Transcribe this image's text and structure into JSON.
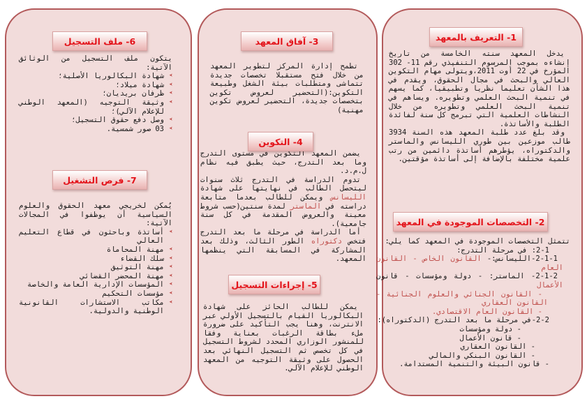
{
  "colors": {
    "panel_fill": "#f2dcdb",
    "panel_border": "#b35a5b",
    "title_text": "#e3141b",
    "highlight": "#c0504d"
  },
  "right_panel": {
    "s1": {
      "title": "1- التعريف بالمعهد",
      "paragraphs": [
        [
          {
            "t": "يدخل المعهد سنته الخامسة من تاريخ إنشاءه بموجب المرسوم التنفيذي رقم 11-  302 المؤرخ في 22 أوت 2011،ويتولى مهام التكوين العالي والبحث في مجال الحقوق، ويقدم في هذا الشأن تعليما نظريا وتطبيقيا، كما يسهم في تنمية البحث العلمي وتطويره. ويساهم في تنمية البحث العلمي وتطويره من خلال النشاطات العلمية التي تبرمج كل سنة لفائدة الطلبة والأساتذة."
          }
        ],
        [
          {
            "t": "وقد بلغ عدد طلبة المعهد هذه السنة 3934 طالب موزعين بين طوري الليسانس والماستر والدكتوراه، يؤطرهم أساتذة دائمين من رتب علمية مختلفة بالإضافة إلى أساتذة مؤقتين."
          }
        ]
      ]
    },
    "s2": {
      "title": "2- التخصصات الموجودة في المعهد",
      "paragraphs": [
        [
          {
            "t": "تتمثل التخصصات الموجودة في المعهد كما يلي:"
          }
        ],
        [
          {
            "t": "2-1: في مرحلة التدرج:"
          }
        ],
        [
          {
            "t": "2-1-1-الليسانس:- "
          },
          {
            "t": "القانون الخاص - القانون العام",
            "red": true
          }
        ],
        [
          {
            "t": "2-1-2- الماستر: - دولة ومؤسسات - قانون "
          },
          {
            "t": "الأعمال",
            "red": true
          }
        ],
        [
          {
            "t": "- القانون الجنائي والعلوم الجنائية - القانون العقاري",
            "red": true
          }
        ],
        [
          {
            "t": "- القانون العام الاقتصادي.",
            "red": true
          }
        ],
        [
          {
            "t": "2-2-في مرحلة ما بعد التدرج (الدكتوراه):"
          }
        ],
        [
          {
            "t": "- دولة ومؤسسات"
          }
        ],
        [
          {
            "t": "- قانون الأعمال"
          }
        ],
        [
          {
            "t": "- القانون العقاري"
          }
        ],
        [
          {
            "t": "- القانون البنكي والمالي"
          }
        ],
        [
          {
            "t": "- قانون البيئة والتنمية المستدامة."
          }
        ]
      ]
    }
  },
  "middle_panel": {
    "s3": {
      "title": "3-  آفاق المعهد",
      "paragraphs": [
        [
          {
            "t": "تطمح إدارة المركز لتطوير المعهد من خلال فتح مستقبلا تخصصات جديدة تتماشى ومتطلبات بيئة الشغل وطبيعة التكوين:(التحضير لعروض تكوين بتخصصات جديدة، التحضير لعروض تكوين مهنية)"
          }
        ]
      ]
    },
    "s4": {
      "title": "4- التكوين",
      "paragraphs": [
        [
          {
            "t": "يضمن المعهد التكوين في مستوى التدرج وما بعد التدرج، حيث يطبق فيه نظام ل.م.د."
          }
        ],
        [
          {
            "t": "تدوم الدراسة في التدرج ثلاث سنوات ليتحصل الطالب في نهايتها على شهادة "
          },
          {
            "t": "الليسانس",
            "red": true
          },
          {
            "t": " ويمكن للطالب بعدما متابعة دراسته في "
          },
          {
            "t": "الماستر",
            "red": true
          },
          {
            "t": " لمدة سنتين(حسب شروط معينة والعروض المقدمة في كل سنة جامعية)."
          }
        ],
        [
          {
            "t": "أما الدراسة في مرحلة ما بعد التدرج فتخص "
          },
          {
            "t": "دكتوراه",
            "red": true
          },
          {
            "t": " الطور الثالث، وذلك بعد المشاركة في المسابقة التي ينظمها المعهد."
          }
        ]
      ]
    },
    "s5": {
      "title": "5- إجراءات التسجيل",
      "paragraphs": [
        [
          {
            "t": "يمكن للطالب الحائز على شهادة البكالوريا القيام بالتسجيل الأولي عبر الانترنت، وهنا يجب التأكيد على ضرورة ملء بطاقة الرغبات بعناية وفقا للمنشور الوزاري المحدد لشروط التسجيل في كل تخصص ثم التسجيل النهائي بعد الحصول على وثيقة التوجيه من المعهد الوطني للإعلام الآلي."
          }
        ]
      ]
    }
  },
  "left_panel": {
    "s6": {
      "title": "6- ملف التسجيل",
      "intro": "يتكون ملف التسجيل من الوثائق الآتية:",
      "items": [
        "شهادة البكالوريا الأصلية؛",
        "شهادة ميلاد؛",
        "ظرفان بريديان؛",
        "وثيقة التوجيه (المعهد الوطني للإعلام الآلي)؛",
        "وصل دفع حقوق التسجيل؛",
        "03 صور شمسية."
      ]
    },
    "s7": {
      "title": "7- فرص التشغيل",
      "intro": "يُمكن لخريجي معهد الحقوق والعلوم السياسية أن يوظفوا في المجالات الآتية:",
      "items": [
        "أساتذة وباحثون في قطاع التعليم العالي",
        "مهنة المحاماة",
        "سلك القضاء",
        "مهنة التوثيق",
        "مهنة المحضر القضائي",
        "المؤسسات الإدارية العامة والخاصة",
        "مؤسسات التحكيم",
        "مكاتب الاستشارات القانونية الوطنية والدولية."
      ]
    }
  }
}
